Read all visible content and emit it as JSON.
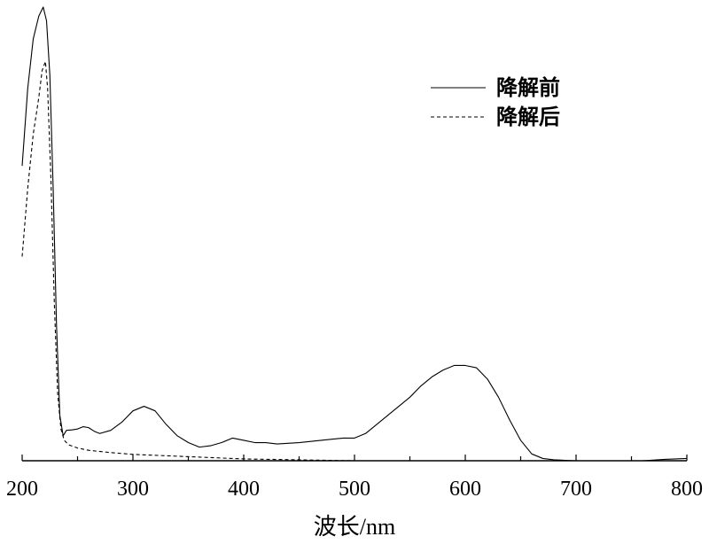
{
  "chart_data": {
    "type": "line",
    "title": "",
    "xlabel": "波长/nm",
    "ylabel": "",
    "xlim": [
      200,
      800
    ],
    "ylim": [
      0,
      1.0
    ],
    "xticks": [
      200,
      300,
      400,
      500,
      600,
      700,
      800
    ],
    "xtick_labels": [
      "200",
      "300",
      "400",
      "500",
      "600",
      "700",
      "800"
    ],
    "grid": false,
    "legend_position": "top-right",
    "series": [
      {
        "name": "降解前",
        "line_style": "solid",
        "color": "#000000",
        "x": [
          200,
          205,
          210,
          215,
          219,
          222,
          225,
          228,
          231,
          234,
          237,
          240,
          245,
          250,
          255,
          260,
          265,
          270,
          280,
          290,
          300,
          310,
          320,
          330,
          340,
          350,
          360,
          370,
          380,
          390,
          400,
          410,
          420,
          430,
          450,
          470,
          490,
          500,
          510,
          520,
          530,
          540,
          550,
          560,
          570,
          580,
          590,
          600,
          610,
          620,
          630,
          640,
          650,
          660,
          670,
          680,
          690,
          700,
          720,
          740,
          760,
          780,
          800
        ],
        "y": [
          0.65,
          0.82,
          0.93,
          0.98,
          1.0,
          0.97,
          0.85,
          0.6,
          0.3,
          0.1,
          0.055,
          0.067,
          0.068,
          0.07,
          0.075,
          0.073,
          0.065,
          0.06,
          0.067,
          0.085,
          0.11,
          0.12,
          0.11,
          0.08,
          0.055,
          0.04,
          0.03,
          0.033,
          0.04,
          0.05,
          0.045,
          0.04,
          0.04,
          0.037,
          0.04,
          0.045,
          0.05,
          0.05,
          0.06,
          0.08,
          0.1,
          0.12,
          0.14,
          0.165,
          0.185,
          0.2,
          0.21,
          0.21,
          0.205,
          0.18,
          0.14,
          0.09,
          0.045,
          0.015,
          0.005,
          0.002,
          0.001,
          0.0,
          0.0,
          0.0,
          0.0,
          0.003,
          0.005
        ]
      },
      {
        "name": "降解后",
        "line_style": "dashed",
        "color": "#000000",
        "x": [
          200,
          205,
          210,
          215,
          218,
          221,
          223,
          226,
          229,
          232,
          235,
          238,
          242,
          250,
          260,
          280,
          300,
          330,
          360,
          400,
          450,
          500,
          600,
          700,
          800
        ],
        "y": [
          0.45,
          0.6,
          0.72,
          0.8,
          0.86,
          0.88,
          0.82,
          0.62,
          0.35,
          0.15,
          0.07,
          0.045,
          0.035,
          0.028,
          0.023,
          0.018,
          0.014,
          0.011,
          0.008,
          0.004,
          0.002,
          0.0,
          0.0,
          0.0,
          0.0
        ]
      }
    ]
  }
}
